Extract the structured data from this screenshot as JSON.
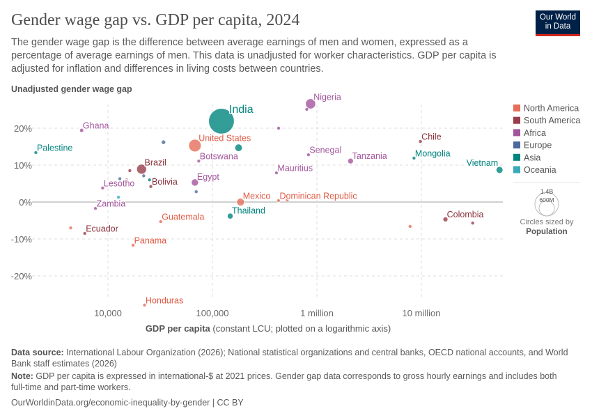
{
  "header": {
    "title": "Gender wage gap vs. GDP per capita, 2024",
    "subtitle": "The gender wage gap is the difference between average earnings of men and women, expressed as a percentage of average earnings of men. This data is unadjusted for worker characteristics. GDP per capita is adjusted for inflation and differences in living costs between countries.",
    "logo": "Our World in Data"
  },
  "chart_data": {
    "type": "scatter",
    "ylabel": "Unadjusted gender wage gap",
    "xlabel_bold": "GDP per capita",
    "xlabel_rest": " (constant LCU; plotted on a logarithmic axis)",
    "x_scale": "log",
    "xlim": [
      1850,
      59000000
    ],
    "ylim": [
      -30,
      28
    ],
    "x_ticks": [
      {
        "v": 10000,
        "label": "10,000"
      },
      {
        "v": 100000,
        "label": "100,000"
      },
      {
        "v": 1000000,
        "label": "1 million"
      },
      {
        "v": 10000000,
        "label": "10 million"
      }
    ],
    "y_ticks": [
      {
        "v": 20,
        "label": "20%"
      },
      {
        "v": 10,
        "label": "10%"
      },
      {
        "v": 0,
        "label": "0%"
      },
      {
        "v": -10,
        "label": "-10%"
      },
      {
        "v": -20,
        "label": "-20%"
      }
    ],
    "grid": true,
    "regions": {
      "North America": "#e56e5a",
      "South America": "#9a3d4a",
      "Africa": "#a2559c",
      "Europe": "#4c6a9c",
      "Asia": "#00847e",
      "Oceania": "#38aaba"
    },
    "label_colors": {
      "North America": "#e05a44",
      "South America": "#883039",
      "Africa": "#a2559c",
      "Europe": "#4c6a9c",
      "Asia": "#00847e",
      "Oceania": "#2d9cab"
    },
    "legend_position": "right",
    "size_legend": {
      "big": "1.4B",
      "small": "600M",
      "caption": "Circles sized by",
      "variable": "Population"
    },
    "points": [
      {
        "name": "India",
        "region": "Asia",
        "x": 122000,
        "y": 21.9,
        "pop": 1440000000
      },
      {
        "name": "Nigeria",
        "region": "Africa",
        "x": 870000,
        "y": 26.6,
        "pop": 220000000
      },
      {
        "name": "",
        "region": "Africa",
        "x": 800000,
        "y": 25.1,
        "pop": 8000000
      },
      {
        "name": "Ghana",
        "region": "Africa",
        "x": 5600,
        "y": 19.4,
        "pop": 34000000
      },
      {
        "name": "Palestine",
        "region": "Asia",
        "x": 2040,
        "y": 13.4,
        "pop": 5000000
      },
      {
        "name": "",
        "region": "Europe",
        "x": 34000,
        "y": 16.2,
        "pop": 40000000
      },
      {
        "name": "United States",
        "region": "North America",
        "x": 68000,
        "y": 15.3,
        "pop": 340000000
      },
      {
        "name": "",
        "region": "Asia",
        "x": 178000,
        "y": 14.7,
        "pop": 120000000
      },
      {
        "name": "Botswana",
        "region": "Africa",
        "x": 74000,
        "y": 11.1,
        "pop": 2600000
      },
      {
        "name": "Brazil",
        "region": "South America",
        "x": 21000,
        "y": 8.9,
        "pop": 210000000
      },
      {
        "name": "",
        "region": "South America",
        "x": 16200,
        "y": 8.5,
        "pop": 18000000
      },
      {
        "name": "",
        "region": "Europe",
        "x": 13000,
        "y": 6.3,
        "pop": 4000000
      },
      {
        "name": "",
        "region": "South America",
        "x": 15000,
        "y": 6.0,
        "pop": 7000000
      },
      {
        "name": "",
        "region": "Europe",
        "x": 22000,
        "y": 7.1,
        "pop": 5000000
      },
      {
        "name": "",
        "region": "Asia",
        "x": 25000,
        "y": 6.0,
        "pop": 20000000
      },
      {
        "name": "Bolivia",
        "region": "South America",
        "x": 25700,
        "y": 4.2,
        "pop": 12000000
      },
      {
        "name": "Lesotho",
        "region": "Africa",
        "x": 8900,
        "y": 3.8,
        "pop": 2300000
      },
      {
        "name": "Egypt",
        "region": "Africa",
        "x": 68000,
        "y": 5.3,
        "pop": 110000000
      },
      {
        "name": "",
        "region": "Europe",
        "x": 70000,
        "y": 2.8,
        "pop": 5000000
      },
      {
        "name": "",
        "region": "Oceania",
        "x": 12600,
        "y": 1.3,
        "pop": 10000000
      },
      {
        "name": "Zambia",
        "region": "Africa",
        "x": 7600,
        "y": -1.7,
        "pop": 20000000
      },
      {
        "name": "Mexico",
        "region": "North America",
        "x": 186000,
        "y": 0,
        "pop": 130000000
      },
      {
        "name": "Thailand",
        "region": "Asia",
        "x": 148000,
        "y": -3.8,
        "pop": 72000000
      },
      {
        "name": "Guatemala",
        "region": "North America",
        "x": 32000,
        "y": -5.3,
        "pop": 18000000
      },
      {
        "name": "Ecuador",
        "region": "South America",
        "x": 6000,
        "y": -8.5,
        "pop": 18000000
      },
      {
        "name": "",
        "region": "North America",
        "x": 4400,
        "y": -7.0,
        "pop": 6000000
      },
      {
        "name": "Panama",
        "region": "North America",
        "x": 17400,
        "y": -11.7,
        "pop": 4400000
      },
      {
        "name": "Honduras",
        "region": "North America",
        "x": 22400,
        "y": -27.9,
        "pop": 10000000
      },
      {
        "name": "",
        "region": "Africa",
        "x": 430000,
        "y": 20.0,
        "pop": 8000000
      },
      {
        "name": "Senegal",
        "region": "Africa",
        "x": 830000,
        "y": 12.8,
        "pop": 18000000
      },
      {
        "name": "Tanzania",
        "region": "Africa",
        "x": 2100000,
        "y": 11.1,
        "pop": 68000000
      },
      {
        "name": "Mauritius",
        "region": "Africa",
        "x": 410000,
        "y": 7.9,
        "pop": 1300000
      },
      {
        "name": "Dominican Republic",
        "region": "North America",
        "x": 430000,
        "y": 0.4,
        "pop": 11000000
      },
      {
        "name": "",
        "region": "North America",
        "x": 520000,
        "y": 0.6,
        "pop": 1000000
      },
      {
        "name": "Chile",
        "region": "South America",
        "x": 9800000,
        "y": 16.4,
        "pop": 19000000
      },
      {
        "name": "Mongolia",
        "region": "Asia",
        "x": 8500000,
        "y": 11.9,
        "pop": 3500000
      },
      {
        "name": "Vietnam",
        "region": "Asia",
        "x": 56000000,
        "y": 8.7,
        "pop": 100000000
      },
      {
        "name": "",
        "region": "North America",
        "x": 7800000,
        "y": -6.6,
        "pop": 5000000
      },
      {
        "name": "Colombia",
        "region": "South America",
        "x": 17000000,
        "y": -4.7,
        "pop": 52000000
      },
      {
        "name": "",
        "region": "South America",
        "x": 31000000,
        "y": -5.7,
        "pop": 7000000
      }
    ]
  },
  "footer": {
    "source_label": "Data source:",
    "source": " International Labour Organization (2026); National statistical organizations and central banks, OECD national accounts, and World Bank staff estimates (2026)",
    "note_label": "Note:",
    "note": " GDP per capita is expressed in international-$ at 2021 prices. Gender gap data corresponds to gross hourly earnings and includes both full-time and part-time workers.",
    "url": "OurWorldinData.org/economic-inequality-by-gender | CC BY"
  }
}
